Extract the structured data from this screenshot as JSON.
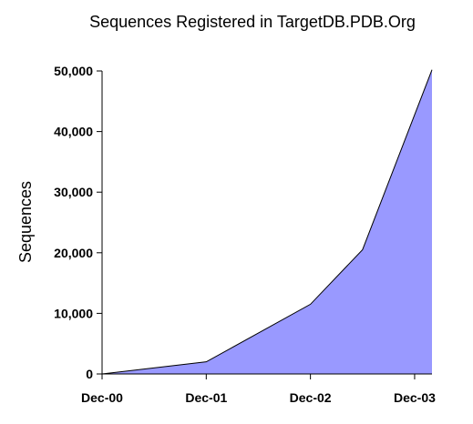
{
  "chart_data": {
    "type": "area",
    "title": "Sequences Registered in TargetDB.PDB.Org",
    "xlabel": "",
    "ylabel": "Sequences",
    "x_tick_labels": [
      "Dec-00",
      "Dec-01",
      "Dec-02",
      "Dec-03"
    ],
    "y_tick_labels": [
      "0",
      "10,000",
      "20,000",
      "30,000",
      "40,000",
      "50,000"
    ],
    "y_ticks": [
      0,
      10000,
      20000,
      30000,
      40000,
      50000
    ],
    "ylim": [
      0,
      50000
    ],
    "xlim": [
      "Dec-00",
      "Feb-04"
    ],
    "grid": false,
    "legend": "none",
    "series": [
      {
        "x": [
          "Dec-00",
          "Dec-01",
          "Dec-02",
          "Jun-03",
          "Feb-04"
        ],
        "y": [
          0,
          2000,
          11500,
          20500,
          50200
        ]
      }
    ],
    "colors": {
      "fill": "#9999ff",
      "line": "#000000"
    }
  }
}
